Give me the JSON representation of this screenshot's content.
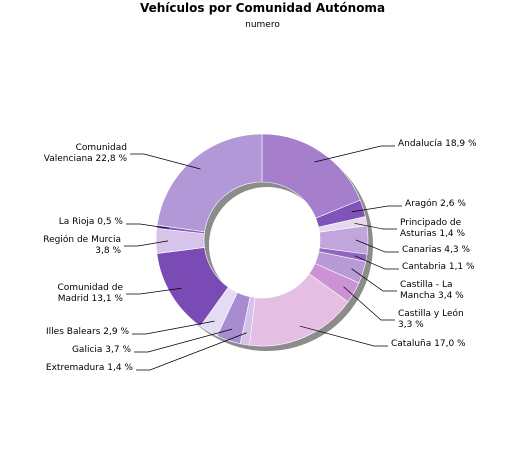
{
  "chart_data": {
    "type": "pie",
    "donut": true,
    "title": "Vehículos por Comunidad Autónoma",
    "subtitle": "numero",
    "slices": [
      {
        "name": "Andalucía",
        "value": 18.9,
        "label_lines": [
          "Andalucía 18,9 %"
        ],
        "color": "#a57fcb"
      },
      {
        "name": "Aragón",
        "value": 2.6,
        "label_lines": [
          "Aragón 2,6 %"
        ],
        "color": "#7f53b8"
      },
      {
        "name": "Principado de Asturias",
        "value": 1.4,
        "label_lines": [
          "Principado de",
          "Asturias 1,4 %"
        ],
        "color": "#e6d8ef"
      },
      {
        "name": "Canarias",
        "value": 4.3,
        "label_lines": [
          "Canarias 4,3 %"
        ],
        "color": "#c1a6dc"
      },
      {
        "name": "Cantabria",
        "value": 1.1,
        "label_lines": [
          "Cantabria 1,1 %"
        ],
        "color": "#9366c4"
      },
      {
        "name": "Castilla - La Mancha",
        "value": 3.4,
        "label_lines": [
          "Castilla - La",
          "Mancha 3,4 %"
        ],
        "color": "#b89ad6"
      },
      {
        "name": "Castilla y León",
        "value": 3.3,
        "label_lines": [
          "Castilla y León",
          "3,3 %"
        ],
        "color": "#cc92d6"
      },
      {
        "name": "Cataluña",
        "value": 17.0,
        "label_lines": [
          "Cataluña 17,0 %"
        ],
        "color": "#e5bee4"
      },
      {
        "name": "Extremadura",
        "value": 1.4,
        "label_lines": [
          "Extremadura 1,4 %"
        ],
        "color": "#d4c2e8"
      },
      {
        "name": "Galicia",
        "value": 3.7,
        "label_lines": [
          "Galicia 3,7 %"
        ],
        "color": "#a88bd0"
      },
      {
        "name": "Illes Balears",
        "value": 2.9,
        "label_lines": [
          "Illes Balears 2,9 %"
        ],
        "color": "#e4dcf2"
      },
      {
        "name": "Comunidad de Madrid",
        "value": 13.1,
        "label_lines": [
          "Comunidad de",
          "Madrid 13,1 %"
        ],
        "color": "#7b4bb5"
      },
      {
        "name": "Región de Murcia",
        "value": 3.8,
        "label_lines": [
          "Región de Murcia",
          "3,8 %"
        ],
        "color": "#d7c4ea"
      },
      {
        "name": "La Rioja",
        "value": 0.5,
        "label_lines": [
          "La Rioja 0,5 %"
        ],
        "color": "#8b5cc0"
      },
      {
        "name": "Comunidad Valenciana",
        "value": 22.8,
        "label_lines": [
          "Comunidad",
          "Valenciana 22,8 %"
        ],
        "color": "#b298d6"
      }
    ]
  }
}
